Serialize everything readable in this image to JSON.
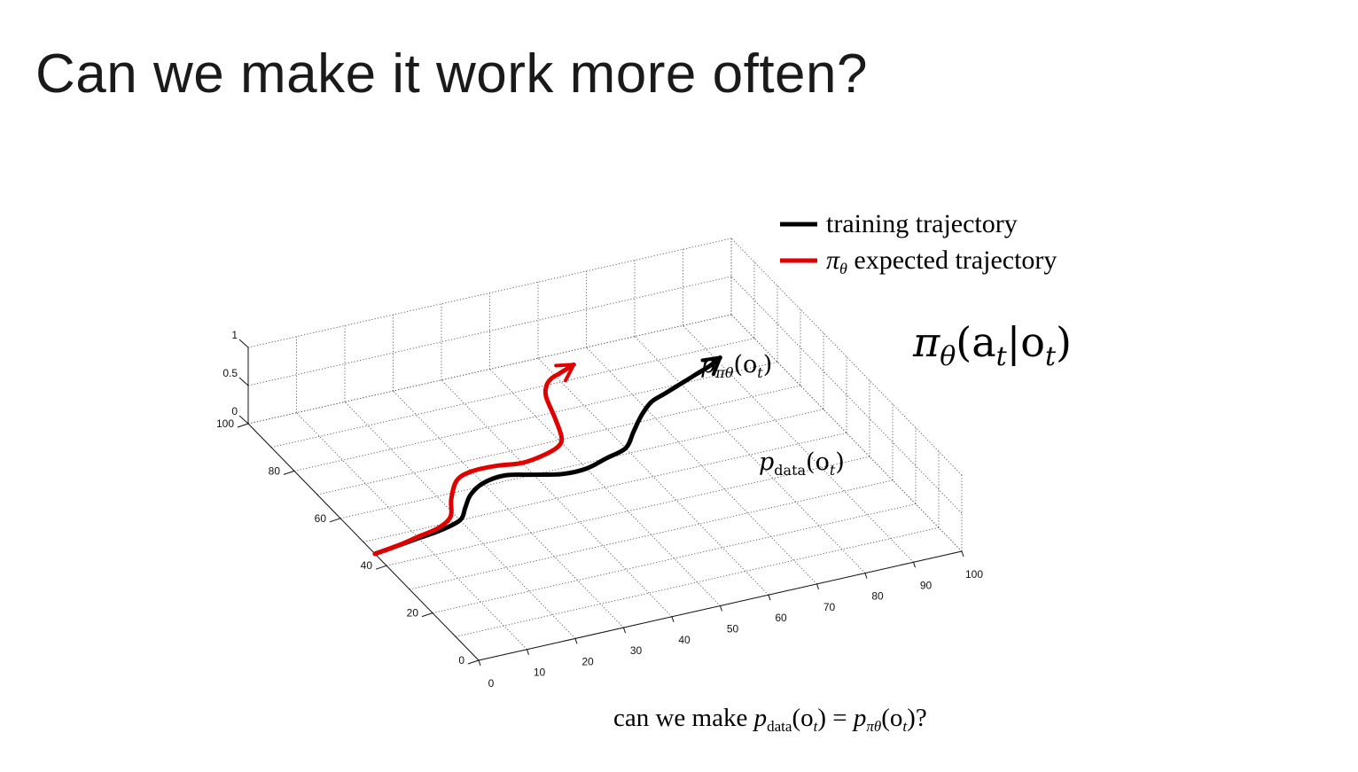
{
  "slide": {
    "title": "Can we make it work more often?",
    "bottom_question": {
      "prefix": "can we make ",
      "suffix": "?"
    }
  },
  "colors": {
    "training": "#000000",
    "expected": "#e00000",
    "grid": "#555555"
  },
  "chart_data": {
    "type": "line",
    "projection": "3d",
    "xlim": [
      0,
      100
    ],
    "ylim": [
      0,
      100
    ],
    "zlim": [
      0,
      1
    ],
    "x_ticks": [
      "0",
      "10",
      "20",
      "30",
      "40",
      "50",
      "60",
      "70",
      "80",
      "90",
      "100"
    ],
    "y_ticks": [
      "0",
      "20",
      "40",
      "60",
      "80",
      "100"
    ],
    "z_ticks": [
      "0",
      "0.5",
      "1"
    ],
    "grid": true,
    "legend_position": "top-right",
    "legend": [
      {
        "label": "training trajectory",
        "color": "#000000"
      },
      {
        "label": "expected trajectory",
        "symbol": "π",
        "subscript": "θ",
        "color": "#e00000"
      }
    ],
    "formula": {
      "symbol": "π",
      "subscript": "θ",
      "args": "(a",
      "args_sub": "t",
      "cond": "|o",
      "cond_sub": "t",
      "close": ")"
    },
    "annotations": [
      {
        "series": "expected",
        "text": "p",
        "sub": "πθ",
        "arg": "(o",
        "arg_sub": "t",
        "close": ")"
      },
      {
        "series": "training",
        "text": "p",
        "sub": "data",
        "arg": "(o",
        "arg_sub": "t",
        "close": ")"
      }
    ],
    "series": [
      {
        "name": "training trajectory",
        "color": "#000000",
        "x": [
          0,
          5,
          10,
          15,
          20,
          23,
          26,
          30,
          35,
          40,
          45,
          50,
          55,
          60,
          64,
          68,
          72,
          76,
          80,
          84,
          88,
          91
        ],
        "y": [
          45,
          46,
          47,
          48,
          50,
          54,
          58,
          61,
          62,
          60,
          58,
          58,
          60,
          62,
          67,
          72,
          76,
          78,
          80,
          82,
          84,
          86
        ]
      },
      {
        "name": "expected trajectory",
        "color": "#e00000",
        "x": [
          0,
          5,
          10,
          15,
          19,
          22,
          26,
          30,
          35,
          40,
          45,
          49,
          51,
          53,
          55,
          57,
          59,
          61,
          63,
          65
        ],
        "y": [
          45,
          46,
          47.5,
          49,
          52,
          58,
          64,
          66,
          66,
          65,
          66,
          68,
          71,
          78,
          86,
          90,
          92,
          93,
          94,
          95
        ]
      }
    ]
  }
}
